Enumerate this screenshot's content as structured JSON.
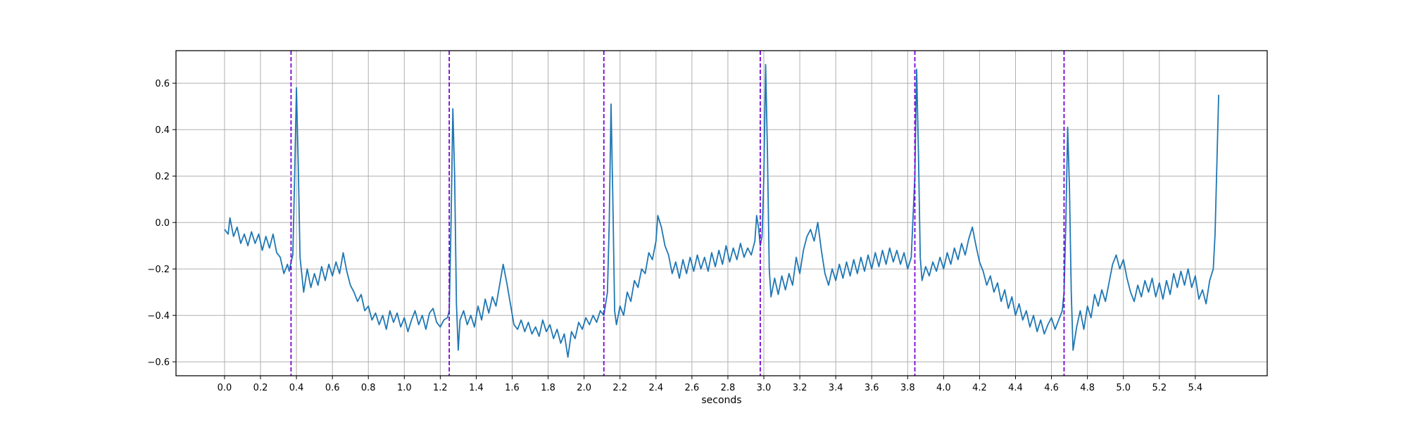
{
  "chart_data": {
    "type": "line",
    "title": "",
    "xlabel": "seconds",
    "ylabel": "",
    "xlim": [
      -0.27,
      5.8
    ],
    "ylim": [
      -0.66,
      0.74
    ],
    "grid": true,
    "legend": "none",
    "xticks": [
      0.0,
      0.2,
      0.4,
      0.6,
      0.8,
      1.0,
      1.2,
      1.4,
      1.6,
      1.8,
      2.0,
      2.2,
      2.4,
      2.6,
      2.8,
      3.0,
      3.2,
      3.4,
      3.6,
      3.8,
      4.0,
      4.2,
      4.4,
      4.6,
      4.8,
      5.0,
      5.2,
      5.4
    ],
    "xtick_labels": [
      "0.0",
      "0.2",
      "0.4",
      "0.6",
      "0.8",
      "1.0",
      "1.2",
      "1.4",
      "1.6",
      "1.8",
      "2.0",
      "2.2",
      "2.4",
      "2.6",
      "2.8",
      "3.0",
      "3.2",
      "3.4",
      "3.6",
      "3.8",
      "4.0",
      "4.2",
      "4.4",
      "4.6",
      "4.8",
      "5.0",
      "5.2",
      "5.4"
    ],
    "yticks": [
      -0.6,
      -0.4,
      -0.2,
      0.0,
      0.2,
      0.4,
      0.6
    ],
    "ytick_labels": [
      "−0.6",
      "−0.4",
      "−0.2",
      "0.0",
      "0.2",
      "0.4",
      "0.6"
    ],
    "series": [
      {
        "name": "",
        "color": "#1f77b4",
        "points": [
          [
            0.0,
            -0.03
          ],
          [
            0.02,
            -0.05
          ],
          [
            0.03,
            0.02
          ],
          [
            0.05,
            -0.06
          ],
          [
            0.07,
            -0.02
          ],
          [
            0.09,
            -0.09
          ],
          [
            0.11,
            -0.05
          ],
          [
            0.13,
            -0.1
          ],
          [
            0.15,
            -0.04
          ],
          [
            0.17,
            -0.09
          ],
          [
            0.19,
            -0.05
          ],
          [
            0.21,
            -0.12
          ],
          [
            0.23,
            -0.06
          ],
          [
            0.25,
            -0.11
          ],
          [
            0.27,
            -0.05
          ],
          [
            0.29,
            -0.13
          ],
          [
            0.31,
            -0.15
          ],
          [
            0.33,
            -0.22
          ],
          [
            0.35,
            -0.18
          ],
          [
            0.36,
            -0.21
          ],
          [
            0.37,
            -0.17
          ],
          [
            0.38,
            -0.14
          ],
          [
            0.39,
            0.2
          ],
          [
            0.4,
            0.58
          ],
          [
            0.41,
            0.25
          ],
          [
            0.42,
            -0.15
          ],
          [
            0.44,
            -0.3
          ],
          [
            0.46,
            -0.2
          ],
          [
            0.48,
            -0.28
          ],
          [
            0.5,
            -0.22
          ],
          [
            0.52,
            -0.27
          ],
          [
            0.54,
            -0.19
          ],
          [
            0.56,
            -0.25
          ],
          [
            0.58,
            -0.18
          ],
          [
            0.6,
            -0.23
          ],
          [
            0.62,
            -0.17
          ],
          [
            0.64,
            -0.22
          ],
          [
            0.66,
            -0.13
          ],
          [
            0.68,
            -0.21
          ],
          [
            0.7,
            -0.27
          ],
          [
            0.72,
            -0.3
          ],
          [
            0.74,
            -0.34
          ],
          [
            0.76,
            -0.31
          ],
          [
            0.78,
            -0.38
          ],
          [
            0.8,
            -0.36
          ],
          [
            0.82,
            -0.42
          ],
          [
            0.84,
            -0.39
          ],
          [
            0.86,
            -0.44
          ],
          [
            0.88,
            -0.4
          ],
          [
            0.9,
            -0.46
          ],
          [
            0.92,
            -0.38
          ],
          [
            0.94,
            -0.43
          ],
          [
            0.96,
            -0.39
          ],
          [
            0.98,
            -0.45
          ],
          [
            1.0,
            -0.41
          ],
          [
            1.02,
            -0.47
          ],
          [
            1.04,
            -0.42
          ],
          [
            1.06,
            -0.38
          ],
          [
            1.08,
            -0.44
          ],
          [
            1.1,
            -0.4
          ],
          [
            1.12,
            -0.46
          ],
          [
            1.14,
            -0.39
          ],
          [
            1.16,
            -0.37
          ],
          [
            1.18,
            -0.43
          ],
          [
            1.2,
            -0.45
          ],
          [
            1.22,
            -0.42
          ],
          [
            1.24,
            -0.41
          ],
          [
            1.25,
            -0.38
          ],
          [
            1.26,
            0.0
          ],
          [
            1.27,
            0.49
          ],
          [
            1.28,
            0.2
          ],
          [
            1.29,
            -0.35
          ],
          [
            1.3,
            -0.55
          ],
          [
            1.31,
            -0.42
          ],
          [
            1.33,
            -0.38
          ],
          [
            1.35,
            -0.44
          ],
          [
            1.37,
            -0.4
          ],
          [
            1.39,
            -0.45
          ],
          [
            1.41,
            -0.36
          ],
          [
            1.43,
            -0.42
          ],
          [
            1.45,
            -0.33
          ],
          [
            1.47,
            -0.39
          ],
          [
            1.49,
            -0.32
          ],
          [
            1.51,
            -0.36
          ],
          [
            1.53,
            -0.27
          ],
          [
            1.55,
            -0.18
          ],
          [
            1.57,
            -0.26
          ],
          [
            1.59,
            -0.35
          ],
          [
            1.61,
            -0.44
          ],
          [
            1.63,
            -0.46
          ],
          [
            1.65,
            -0.42
          ],
          [
            1.67,
            -0.47
          ],
          [
            1.69,
            -0.43
          ],
          [
            1.71,
            -0.48
          ],
          [
            1.73,
            -0.45
          ],
          [
            1.75,
            -0.49
          ],
          [
            1.77,
            -0.42
          ],
          [
            1.79,
            -0.47
          ],
          [
            1.81,
            -0.44
          ],
          [
            1.83,
            -0.5
          ],
          [
            1.85,
            -0.46
          ],
          [
            1.87,
            -0.52
          ],
          [
            1.89,
            -0.48
          ],
          [
            1.91,
            -0.58
          ],
          [
            1.93,
            -0.47
          ],
          [
            1.95,
            -0.5
          ],
          [
            1.97,
            -0.43
          ],
          [
            1.99,
            -0.46
          ],
          [
            2.01,
            -0.41
          ],
          [
            2.03,
            -0.44
          ],
          [
            2.05,
            -0.4
          ],
          [
            2.07,
            -0.43
          ],
          [
            2.09,
            -0.38
          ],
          [
            2.11,
            -0.4
          ],
          [
            2.12,
            -0.35
          ],
          [
            2.13,
            -0.3
          ],
          [
            2.14,
            0.0
          ],
          [
            2.15,
            0.51
          ],
          [
            2.16,
            0.1
          ],
          [
            2.17,
            -0.38
          ],
          [
            2.18,
            -0.44
          ],
          [
            2.2,
            -0.36
          ],
          [
            2.22,
            -0.4
          ],
          [
            2.24,
            -0.3
          ],
          [
            2.26,
            -0.34
          ],
          [
            2.28,
            -0.25
          ],
          [
            2.3,
            -0.28
          ],
          [
            2.32,
            -0.2
          ],
          [
            2.34,
            -0.22
          ],
          [
            2.36,
            -0.13
          ],
          [
            2.38,
            -0.16
          ],
          [
            2.4,
            -0.08
          ],
          [
            2.41,
            0.03
          ],
          [
            2.43,
            -0.02
          ],
          [
            2.45,
            -0.1
          ],
          [
            2.47,
            -0.14
          ],
          [
            2.49,
            -0.22
          ],
          [
            2.51,
            -0.17
          ],
          [
            2.53,
            -0.24
          ],
          [
            2.55,
            -0.16
          ],
          [
            2.57,
            -0.22
          ],
          [
            2.59,
            -0.15
          ],
          [
            2.61,
            -0.21
          ],
          [
            2.63,
            -0.14
          ],
          [
            2.65,
            -0.2
          ],
          [
            2.67,
            -0.15
          ],
          [
            2.69,
            -0.21
          ],
          [
            2.71,
            -0.13
          ],
          [
            2.73,
            -0.19
          ],
          [
            2.75,
            -0.12
          ],
          [
            2.77,
            -0.18
          ],
          [
            2.79,
            -0.1
          ],
          [
            2.81,
            -0.17
          ],
          [
            2.83,
            -0.11
          ],
          [
            2.85,
            -0.16
          ],
          [
            2.87,
            -0.09
          ],
          [
            2.89,
            -0.15
          ],
          [
            2.91,
            -0.11
          ],
          [
            2.93,
            -0.14
          ],
          [
            2.95,
            -0.08
          ],
          [
            2.96,
            0.03
          ],
          [
            2.97,
            -0.02
          ],
          [
            2.98,
            -0.1
          ],
          [
            2.99,
            -0.06
          ],
          [
            3.0,
            0.2
          ],
          [
            3.01,
            0.68
          ],
          [
            3.02,
            0.3
          ],
          [
            3.03,
            -0.2
          ],
          [
            3.04,
            -0.32
          ],
          [
            3.06,
            -0.24
          ],
          [
            3.08,
            -0.31
          ],
          [
            3.1,
            -0.23
          ],
          [
            3.12,
            -0.29
          ],
          [
            3.14,
            -0.22
          ],
          [
            3.16,
            -0.27
          ],
          [
            3.18,
            -0.15
          ],
          [
            3.2,
            -0.22
          ],
          [
            3.22,
            -0.12
          ],
          [
            3.24,
            -0.06
          ],
          [
            3.26,
            -0.03
          ],
          [
            3.28,
            -0.08
          ],
          [
            3.3,
            0.0
          ],
          [
            3.32,
            -0.12
          ],
          [
            3.34,
            -0.22
          ],
          [
            3.36,
            -0.27
          ],
          [
            3.38,
            -0.2
          ],
          [
            3.4,
            -0.25
          ],
          [
            3.42,
            -0.18
          ],
          [
            3.44,
            -0.24
          ],
          [
            3.46,
            -0.17
          ],
          [
            3.48,
            -0.23
          ],
          [
            3.5,
            -0.16
          ],
          [
            3.52,
            -0.22
          ],
          [
            3.54,
            -0.15
          ],
          [
            3.56,
            -0.21
          ],
          [
            3.58,
            -0.14
          ],
          [
            3.6,
            -0.2
          ],
          [
            3.62,
            -0.13
          ],
          [
            3.64,
            -0.19
          ],
          [
            3.66,
            -0.12
          ],
          [
            3.68,
            -0.18
          ],
          [
            3.7,
            -0.11
          ],
          [
            3.72,
            -0.17
          ],
          [
            3.74,
            -0.12
          ],
          [
            3.76,
            -0.18
          ],
          [
            3.78,
            -0.13
          ],
          [
            3.8,
            -0.2
          ],
          [
            3.82,
            -0.15
          ],
          [
            3.84,
            0.2
          ],
          [
            3.85,
            0.66
          ],
          [
            3.86,
            0.3
          ],
          [
            3.87,
            -0.15
          ],
          [
            3.88,
            -0.25
          ],
          [
            3.9,
            -0.19
          ],
          [
            3.92,
            -0.23
          ],
          [
            3.94,
            -0.17
          ],
          [
            3.96,
            -0.21
          ],
          [
            3.98,
            -0.15
          ],
          [
            4.0,
            -0.2
          ],
          [
            4.02,
            -0.13
          ],
          [
            4.04,
            -0.18
          ],
          [
            4.06,
            -0.11
          ],
          [
            4.08,
            -0.16
          ],
          [
            4.1,
            -0.09
          ],
          [
            4.12,
            -0.14
          ],
          [
            4.14,
            -0.07
          ],
          [
            4.16,
            -0.02
          ],
          [
            4.18,
            -0.1
          ],
          [
            4.2,
            -0.17
          ],
          [
            4.22,
            -0.21
          ],
          [
            4.24,
            -0.27
          ],
          [
            4.26,
            -0.23
          ],
          [
            4.28,
            -0.3
          ],
          [
            4.3,
            -0.26
          ],
          [
            4.32,
            -0.34
          ],
          [
            4.34,
            -0.29
          ],
          [
            4.36,
            -0.37
          ],
          [
            4.38,
            -0.32
          ],
          [
            4.4,
            -0.4
          ],
          [
            4.42,
            -0.35
          ],
          [
            4.44,
            -0.42
          ],
          [
            4.46,
            -0.38
          ],
          [
            4.48,
            -0.45
          ],
          [
            4.5,
            -0.4
          ],
          [
            4.52,
            -0.47
          ],
          [
            4.54,
            -0.42
          ],
          [
            4.56,
            -0.48
          ],
          [
            4.58,
            -0.44
          ],
          [
            4.6,
            -0.41
          ],
          [
            4.62,
            -0.46
          ],
          [
            4.64,
            -0.42
          ],
          [
            4.66,
            -0.38
          ],
          [
            4.67,
            -0.3
          ],
          [
            4.68,
            0.0
          ],
          [
            4.69,
            0.41
          ],
          [
            4.7,
            0.15
          ],
          [
            4.71,
            -0.3
          ],
          [
            4.72,
            -0.55
          ],
          [
            4.74,
            -0.45
          ],
          [
            4.76,
            -0.38
          ],
          [
            4.78,
            -0.46
          ],
          [
            4.8,
            -0.36
          ],
          [
            4.82,
            -0.41
          ],
          [
            4.84,
            -0.31
          ],
          [
            4.86,
            -0.36
          ],
          [
            4.88,
            -0.29
          ],
          [
            4.9,
            -0.34
          ],
          [
            4.92,
            -0.26
          ],
          [
            4.94,
            -0.18
          ],
          [
            4.96,
            -0.14
          ],
          [
            4.98,
            -0.2
          ],
          [
            5.0,
            -0.16
          ],
          [
            5.02,
            -0.24
          ],
          [
            5.04,
            -0.3
          ],
          [
            5.06,
            -0.34
          ],
          [
            5.08,
            -0.27
          ],
          [
            5.1,
            -0.32
          ],
          [
            5.12,
            -0.25
          ],
          [
            5.14,
            -0.3
          ],
          [
            5.16,
            -0.24
          ],
          [
            5.18,
            -0.32
          ],
          [
            5.2,
            -0.26
          ],
          [
            5.22,
            -0.33
          ],
          [
            5.24,
            -0.25
          ],
          [
            5.26,
            -0.31
          ],
          [
            5.28,
            -0.22
          ],
          [
            5.3,
            -0.28
          ],
          [
            5.32,
            -0.21
          ],
          [
            5.34,
            -0.27
          ],
          [
            5.36,
            -0.2
          ],
          [
            5.38,
            -0.28
          ],
          [
            5.4,
            -0.23
          ],
          [
            5.42,
            -0.33
          ],
          [
            5.44,
            -0.29
          ],
          [
            5.46,
            -0.35
          ],
          [
            5.48,
            -0.25
          ],
          [
            5.5,
            -0.2
          ],
          [
            5.51,
            -0.05
          ],
          [
            5.52,
            0.25
          ],
          [
            5.53,
            0.55
          ]
        ]
      }
    ],
    "vlines": {
      "color": "#7b00d4",
      "style": "dashed",
      "x": [
        0.37,
        1.25,
        2.11,
        2.98,
        3.84,
        4.67
      ]
    }
  }
}
